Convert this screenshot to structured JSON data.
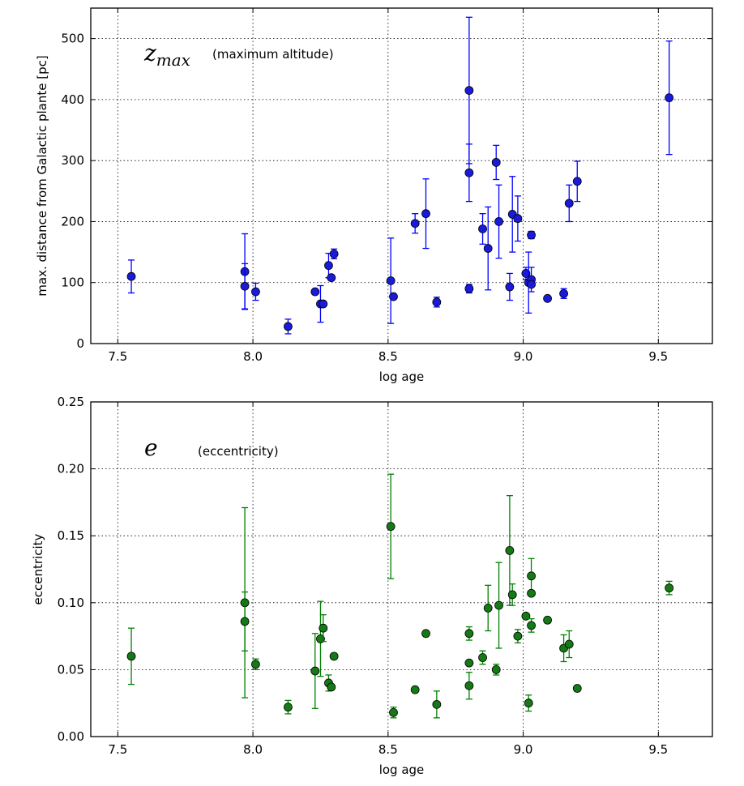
{
  "chart_data": [
    {
      "type": "scatter",
      "xlabel": "log age",
      "ylabel": "max. distance from Galactic plante [pc]",
      "annotation_symbol": "z",
      "annotation_subscript": "max",
      "annotation_text": "(maximum altitude)",
      "xlim": [
        7.4,
        9.7
      ],
      "ylim": [
        0,
        550
      ],
      "x_ticks": [
        7.5,
        8.0,
        8.5,
        9.0,
        9.5
      ],
      "x_tick_labels": [
        "7.5",
        "8.0",
        "8.5",
        "9.0",
        "9.5"
      ],
      "y_ticks": [
        0,
        100,
        200,
        300,
        400,
        500
      ],
      "y_tick_labels": [
        "0",
        "100",
        "200",
        "300",
        "400",
        "500"
      ],
      "grid": true,
      "color": "#0000ff",
      "marker_fill": "#1a1adb",
      "points": [
        {
          "x": 7.55,
          "y": 110,
          "err": 27
        },
        {
          "x": 7.97,
          "y": 118,
          "err": 62
        },
        {
          "x": 7.97,
          "y": 94,
          "err": 37
        },
        {
          "x": 8.01,
          "y": 85,
          "err": 14
        },
        {
          "x": 8.13,
          "y": 28,
          "err": 12
        },
        {
          "x": 8.23,
          "y": 85,
          "err": 0
        },
        {
          "x": 8.25,
          "y": 65,
          "err": 30
        },
        {
          "x": 8.26,
          "y": 65,
          "err": 0
        },
        {
          "x": 8.28,
          "y": 128,
          "err": 20
        },
        {
          "x": 8.29,
          "y": 108,
          "err": 0
        },
        {
          "x": 8.3,
          "y": 147,
          "err": 8
        },
        {
          "x": 8.51,
          "y": 103,
          "err": 70
        },
        {
          "x": 8.52,
          "y": 77,
          "err": 0
        },
        {
          "x": 8.6,
          "y": 197,
          "err": 16
        },
        {
          "x": 8.64,
          "y": 213,
          "err": 57
        },
        {
          "x": 8.68,
          "y": 68,
          "err": 8
        },
        {
          "x": 8.8,
          "y": 415,
          "err": 120
        },
        {
          "x": 8.8,
          "y": 280,
          "err": 47
        },
        {
          "x": 8.8,
          "y": 90,
          "err": 7
        },
        {
          "x": 8.85,
          "y": 188,
          "err": 25
        },
        {
          "x": 8.87,
          "y": 156,
          "err": 68
        },
        {
          "x": 8.9,
          "y": 297,
          "err": 28
        },
        {
          "x": 8.91,
          "y": 200,
          "err": 60
        },
        {
          "x": 8.95,
          "y": 93,
          "err": 22
        },
        {
          "x": 8.96,
          "y": 212,
          "err": 62
        },
        {
          "x": 8.98,
          "y": 205,
          "err": 37
        },
        {
          "x": 9.01,
          "y": 115,
          "err": 10
        },
        {
          "x": 9.02,
          "y": 100,
          "err": 50
        },
        {
          "x": 9.03,
          "y": 105,
          "err": 20
        },
        {
          "x": 9.03,
          "y": 97,
          "err": 0
        },
        {
          "x": 9.03,
          "y": 178,
          "err": 6
        },
        {
          "x": 9.09,
          "y": 74,
          "err": 0
        },
        {
          "x": 9.15,
          "y": 82,
          "err": 8
        },
        {
          "x": 9.17,
          "y": 230,
          "err": 30
        },
        {
          "x": 9.2,
          "y": 266,
          "err": 33
        },
        {
          "x": 9.54,
          "y": 403,
          "err": 93
        }
      ]
    },
    {
      "type": "scatter",
      "xlabel": "log age",
      "ylabel": "eccentricity",
      "annotation_symbol": "e",
      "annotation_subscript": "",
      "annotation_text": "(eccentricity)",
      "xlim": [
        7.4,
        9.7
      ],
      "ylim": [
        0,
        0.25
      ],
      "x_ticks": [
        7.5,
        8.0,
        8.5,
        9.0,
        9.5
      ],
      "x_tick_labels": [
        "7.5",
        "8.0",
        "8.5",
        "9.0",
        "9.5"
      ],
      "y_ticks": [
        0,
        0.05,
        0.1,
        0.15,
        0.2,
        0.25
      ],
      "y_tick_labels": [
        "0.00",
        "0.05",
        "0.10",
        "0.15",
        "0.20",
        "0.25"
      ],
      "grid": true,
      "color": "#008000",
      "marker_fill": "#157a15",
      "points": [
        {
          "x": 7.55,
          "y": 0.06,
          "err": 0.021
        },
        {
          "x": 7.97,
          "y": 0.1,
          "err": 0.071
        },
        {
          "x": 7.97,
          "y": 0.086,
          "err": 0.022
        },
        {
          "x": 8.01,
          "y": 0.054,
          "err": 0.004
        },
        {
          "x": 8.13,
          "y": 0.022,
          "err": 0.005
        },
        {
          "x": 8.23,
          "y": 0.049,
          "err": 0.028
        },
        {
          "x": 8.25,
          "y": 0.073,
          "err": 0.028
        },
        {
          "x": 8.26,
          "y": 0.081,
          "err": 0.01
        },
        {
          "x": 8.28,
          "y": 0.04,
          "err": 0.006
        },
        {
          "x": 8.29,
          "y": 0.037,
          "err": 0.0
        },
        {
          "x": 8.3,
          "y": 0.06,
          "err": 0.0
        },
        {
          "x": 8.51,
          "y": 0.157,
          "err": 0.039
        },
        {
          "x": 8.52,
          "y": 0.018,
          "err": 0.004
        },
        {
          "x": 8.6,
          "y": 0.035,
          "err": 0.0
        },
        {
          "x": 8.64,
          "y": 0.077,
          "err": 0.0
        },
        {
          "x": 8.68,
          "y": 0.024,
          "err": 0.01
        },
        {
          "x": 8.8,
          "y": 0.077,
          "err": 0.005
        },
        {
          "x": 8.8,
          "y": 0.055,
          "err": 0.0
        },
        {
          "x": 8.8,
          "y": 0.038,
          "err": 0.01
        },
        {
          "x": 8.85,
          "y": 0.059,
          "err": 0.005
        },
        {
          "x": 8.87,
          "y": 0.096,
          "err": 0.017
        },
        {
          "x": 8.9,
          "y": 0.05,
          "err": 0.004
        },
        {
          "x": 8.91,
          "y": 0.098,
          "err": 0.032
        },
        {
          "x": 8.95,
          "y": 0.139,
          "err": 0.041
        },
        {
          "x": 8.96,
          "y": 0.106,
          "err": 0.008
        },
        {
          "x": 8.98,
          "y": 0.075,
          "err": 0.005
        },
        {
          "x": 9.01,
          "y": 0.09,
          "err": 0.0
        },
        {
          "x": 9.02,
          "y": 0.025,
          "err": 0.006
        },
        {
          "x": 9.03,
          "y": 0.12,
          "err": 0.013
        },
        {
          "x": 9.03,
          "y": 0.107,
          "err": 0.0
        },
        {
          "x": 9.03,
          "y": 0.083,
          "err": 0.005
        },
        {
          "x": 9.09,
          "y": 0.087,
          "err": 0.002
        },
        {
          "x": 9.15,
          "y": 0.066,
          "err": 0.01
        },
        {
          "x": 9.17,
          "y": 0.069,
          "err": 0.01
        },
        {
          "x": 9.2,
          "y": 0.036,
          "err": 0.002
        },
        {
          "x": 9.54,
          "y": 0.111,
          "err": 0.005
        }
      ]
    }
  ]
}
